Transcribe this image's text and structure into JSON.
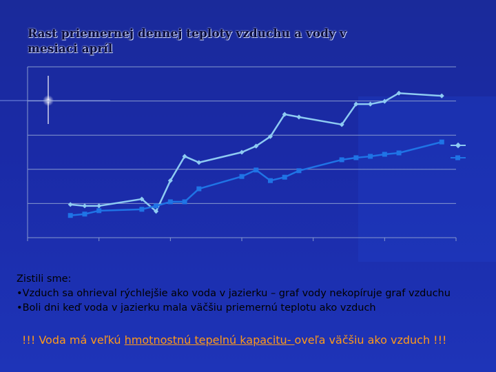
{
  "chart_data": {
    "type": "line",
    "title": "Rast priemernej dennej teploty vzduchu a vody v mesiaci apríl",
    "x": [
      3,
      4,
      5,
      8,
      9,
      10,
      11,
      12,
      15,
      16,
      17,
      18,
      19,
      22,
      23,
      24,
      25,
      26,
      29
    ],
    "series": [
      {
        "color": "#8ecbf2",
        "marker": "diamond",
        "values": [
          0.97,
          0.93,
          0.93,
          1.13,
          0.77,
          1.67,
          2.38,
          2.2,
          2.5,
          2.68,
          2.96,
          3.61,
          3.53,
          3.31,
          3.91,
          3.91,
          3.99,
          4.23,
          4.15
        ]
      },
      {
        "color": "#1f74e6",
        "marker": "square",
        "values": [
          0.65,
          0.69,
          0.79,
          0.83,
          0.93,
          1.05,
          1.05,
          1.43,
          1.79,
          1.98,
          1.67,
          1.77,
          1.96,
          2.28,
          2.34,
          2.38,
          2.44,
          2.48,
          2.8
        ]
      }
    ],
    "xlim": [
      0,
      30
    ],
    "xticks": [
      0,
      5,
      10,
      15,
      20,
      25,
      30
    ],
    "ylim": [
      0,
      5
    ],
    "yticks": [
      0,
      1,
      2,
      3,
      4,
      5
    ],
    "grid": true
  },
  "slide": {
    "heading": "Zistili sme:",
    "bullets": [
      "Vzduch sa ohrieval rýchlejšie ako voda v jazierku – graf vody nekopíruje graf vzduchu",
      "Boli dni keď voda v jazierku mala väčšiu priemernú teplotu ako vzduch"
    ],
    "conclusion": [
      "!!! Voda má veľkú ",
      "hmotnostnú tepelnú kapacitu- ",
      "oveľa väčšiu ako vzduch !!!"
    ]
  }
}
